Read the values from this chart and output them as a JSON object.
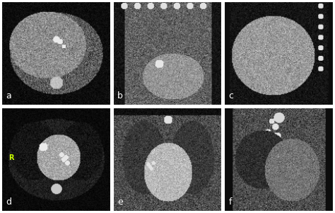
{
  "figure_width": 4.74,
  "figure_height": 3.01,
  "dpi": 100,
  "background_color": "#ffffff",
  "grid_rows": 2,
  "grid_cols": 3,
  "labels": [
    "a",
    "b",
    "c",
    "d",
    "e",
    "f"
  ],
  "r_label_color": "#ccff00",
  "border_color": "#ffffff",
  "seeds": [
    42,
    43,
    44,
    45,
    46,
    47
  ]
}
